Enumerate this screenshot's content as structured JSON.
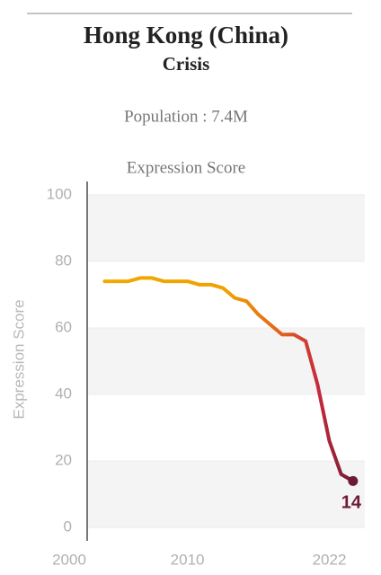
{
  "header": {
    "title": "Hong Kong (China)",
    "subtitle": "Crisis",
    "population": "Population : 7.4M"
  },
  "chart_data": {
    "type": "line",
    "title": "Expression Score",
    "y_label": "Expression Score",
    "x": [
      2003,
      2004,
      2005,
      2006,
      2007,
      2008,
      2009,
      2010,
      2011,
      2012,
      2013,
      2014,
      2015,
      2016,
      2017,
      2018,
      2019,
      2020,
      2021,
      2022,
      2023,
      2024
    ],
    "series": [
      {
        "name": "Expression Score",
        "colors": [
          "#f2a900",
          "#f0a000",
          "#e0601e",
          "#c62a3c",
          "#6d1b32"
        ],
        "values": [
          74,
          74,
          74,
          75,
          75,
          74,
          74,
          74,
          73,
          73,
          72,
          69,
          68,
          64,
          61,
          58,
          58,
          56,
          43,
          26,
          16,
          14
        ]
      }
    ],
    "xlim": [
      2000,
      2025
    ],
    "xticks": [
      2000,
      2010,
      2022
    ],
    "ylim": [
      -4,
      104
    ],
    "yticks": [
      0,
      20,
      40,
      60,
      80,
      100
    ],
    "grid": true
  }
}
